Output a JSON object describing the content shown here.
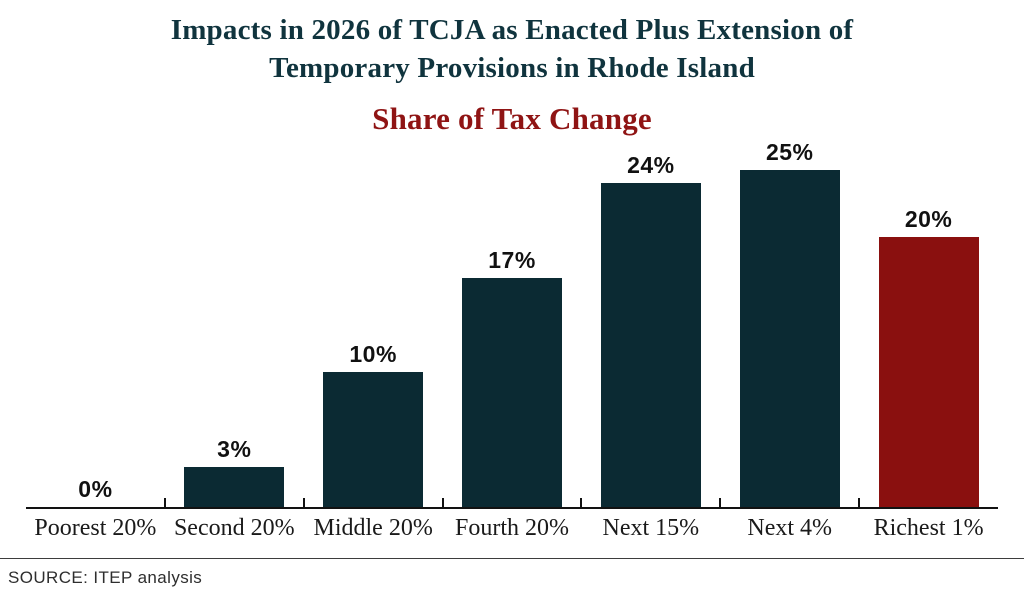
{
  "header": {
    "title_line1": "Impacts in 2026 of TCJA as Enacted Plus Extension of",
    "title_line2": "Temporary Provisions in Rhode Island",
    "subtitle": "Share of Tax Change"
  },
  "footer": {
    "source": "SOURCE: ITEP analysis"
  },
  "colors": {
    "title": "#10343e",
    "subtitle": "#8f1414",
    "bar": "#0b2a33",
    "highlight_bar": "#8a100f",
    "axis": "#121212"
  },
  "chart_data": {
    "type": "bar",
    "title": "Impacts in 2026 of TCJA as Enacted Plus Extension of Temporary Provisions in Rhode Island",
    "subtitle": "Share of Tax Change",
    "categories": [
      "Poorest 20%",
      "Second 20%",
      "Middle 20%",
      "Fourth 20%",
      "Next 15%",
      "Next 4%",
      "Richest 1%"
    ],
    "values": [
      0,
      3,
      10,
      17,
      24,
      25,
      20
    ],
    "value_labels": [
      "0%",
      "3%",
      "10%",
      "17%",
      "24%",
      "25%",
      "20%"
    ],
    "xlabel": "",
    "ylabel": "",
    "ylim": [
      0,
      25
    ],
    "grid": false,
    "legend_position": "none",
    "bar_color": "#0b2a33",
    "highlight_color": "#8a100f",
    "highlight_index": 6,
    "source": "SOURCE: ITEP analysis"
  }
}
